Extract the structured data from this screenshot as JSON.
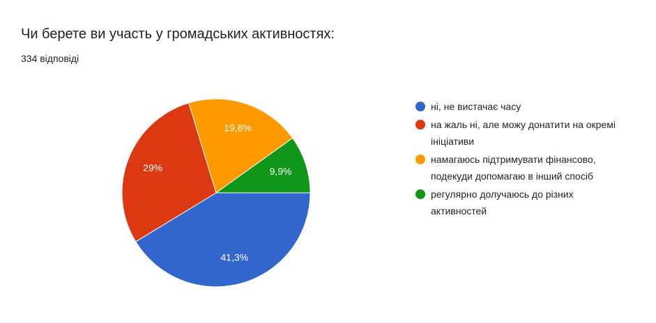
{
  "chart_data": {
    "type": "pie",
    "title": "Чи берете ви участь у громадських активностях:",
    "subtitle": "334 відповіді",
    "categories": [
      "ні, не вистачає часу",
      "на жаль ні, але можу донатити на окремі ініціативи",
      "намагаюсь підтримувати фінансово, подекуди допомагаю в інший спосіб",
      "регулярно долучаюсь до різних активностей"
    ],
    "values": [
      41.3,
      29,
      19.8,
      9.9
    ],
    "value_labels": [
      "41,3%",
      "29%",
      "19,8%",
      "9,9%"
    ],
    "colors": [
      "#3366cc",
      "#dc3912",
      "#ff9900",
      "#109618"
    ],
    "legend": "right"
  }
}
